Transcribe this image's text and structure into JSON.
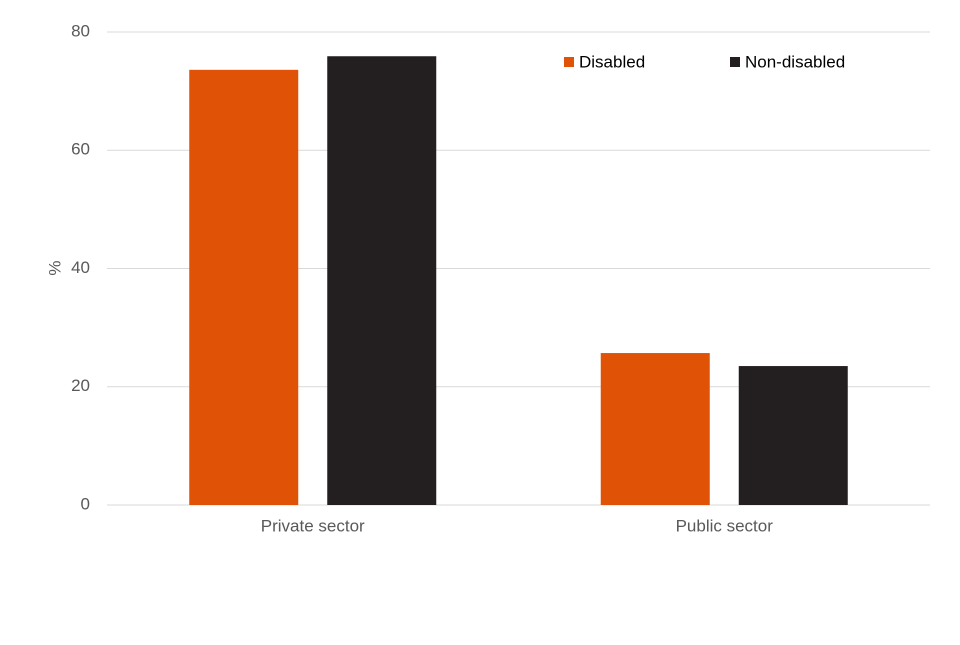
{
  "chart_data": {
    "type": "bar",
    "y_label": "%",
    "categories": [
      "Private sector",
      "Public sector"
    ],
    "series": [
      {
        "name": "Disabled",
        "color": "#e05206",
        "values": [
          73.6,
          25.7
        ]
      },
      {
        "name": "Non-disabled",
        "color": "#231f20",
        "values": [
          75.9,
          23.5
        ]
      }
    ],
    "ylim": [
      0,
      80
    ],
    "yticks": [
      0,
      20,
      40,
      60,
      80
    ],
    "grid": true,
    "legend": "top-right"
  }
}
